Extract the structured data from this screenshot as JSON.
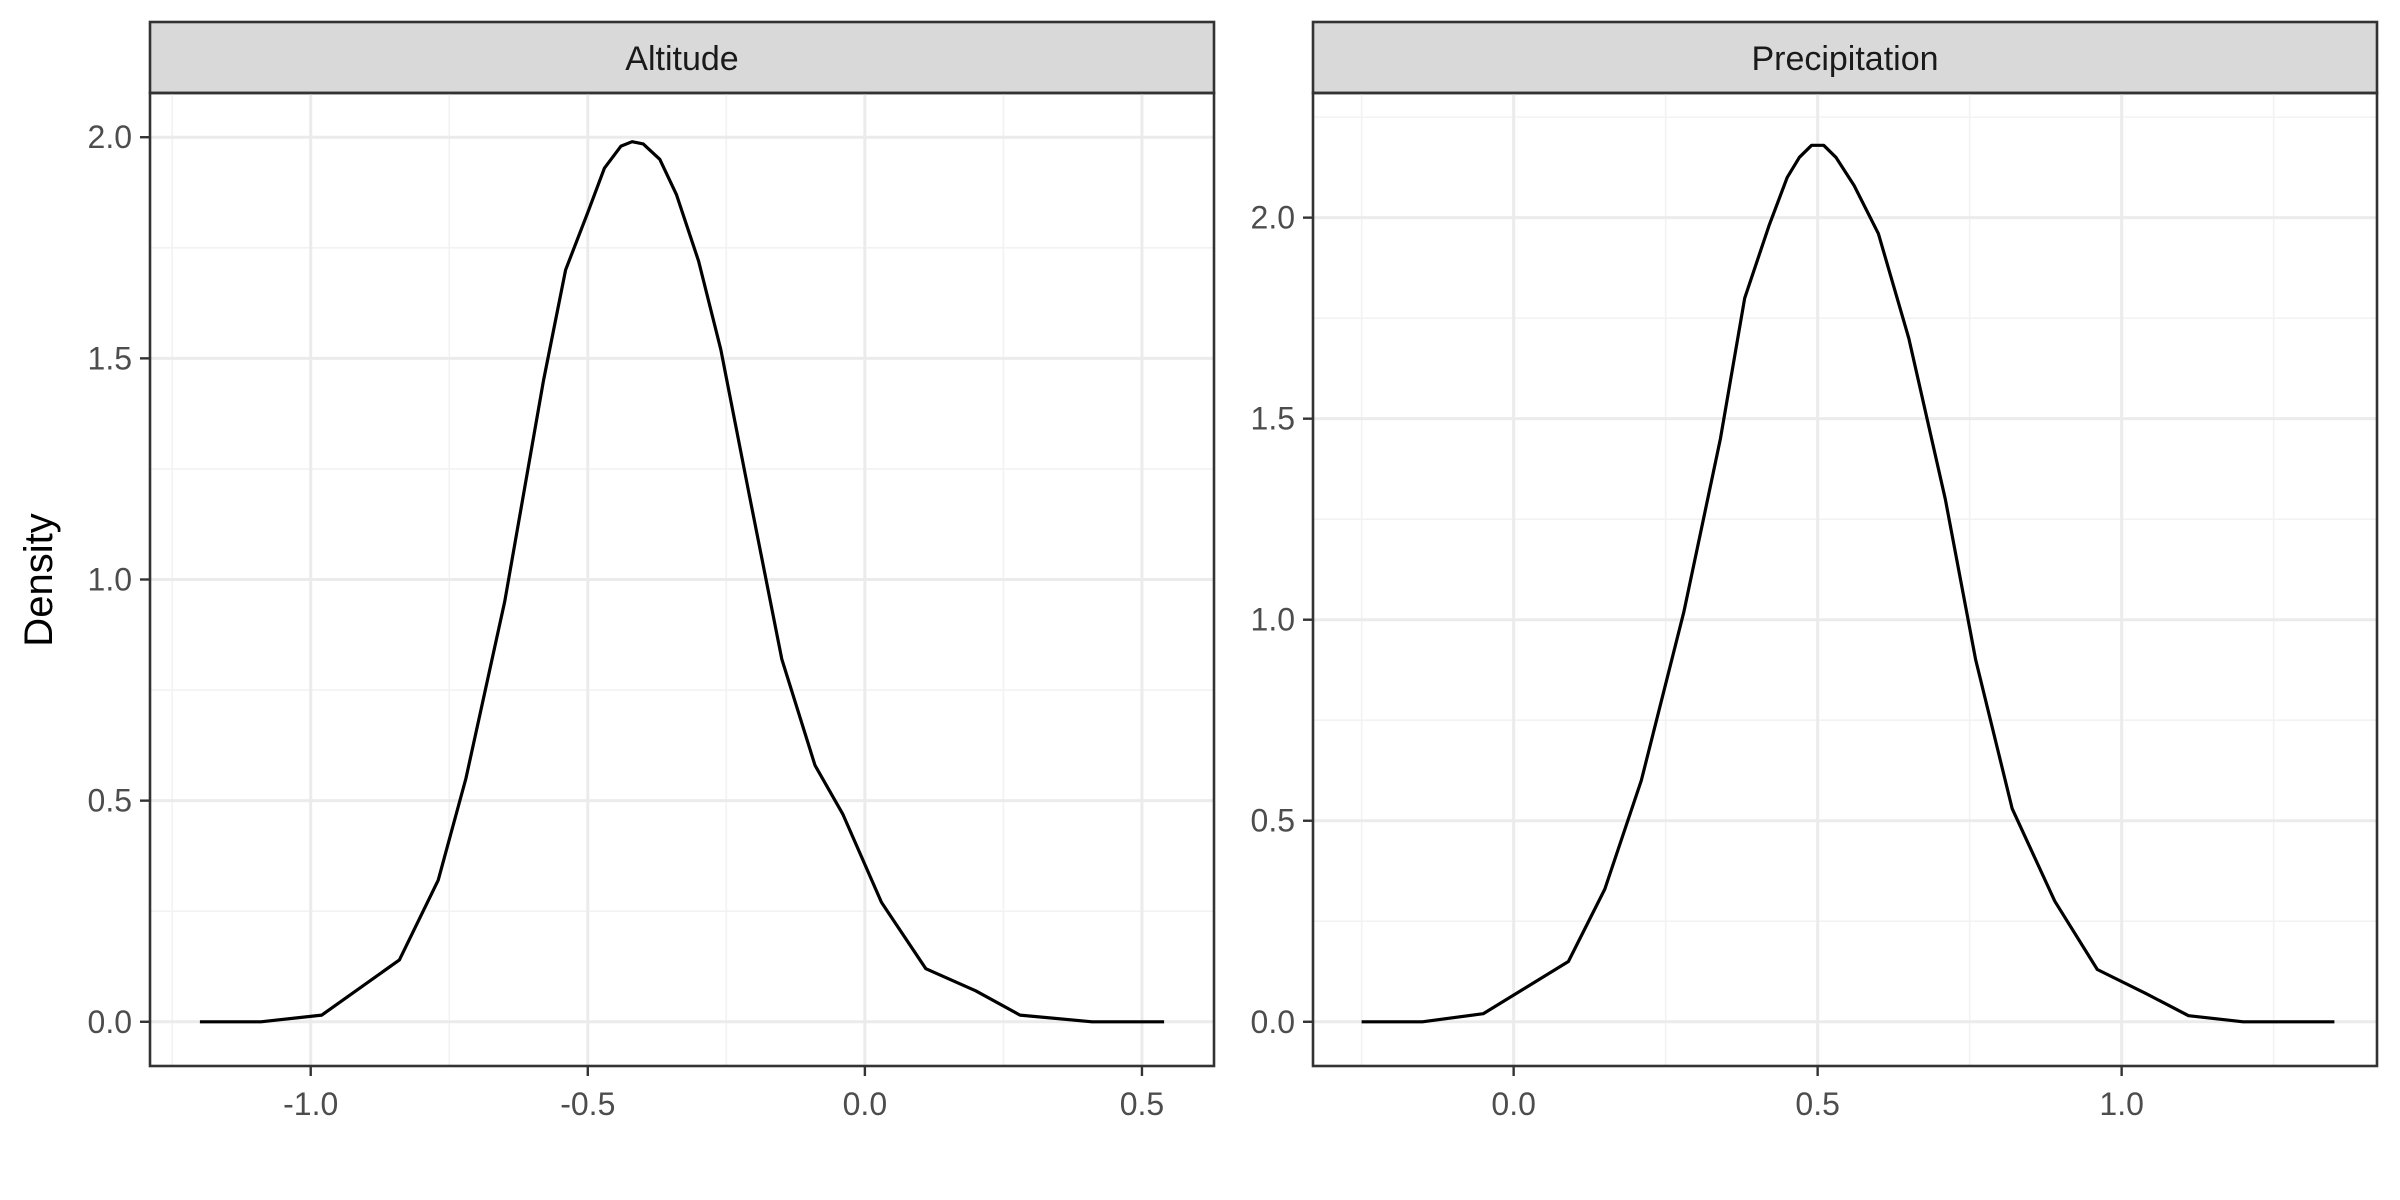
{
  "chart_data": {
    "type": "line",
    "ylabel": "Density",
    "xlabel": "",
    "panels": [
      {
        "strip_label": "Altitude",
        "xlim": [
          -1.29,
          0.63
        ],
        "ylim": [
          -0.1,
          2.1
        ],
        "x_breaks": [
          -1.0,
          -0.5,
          0.0,
          0.5
        ],
        "x_break_labels": [
          "-1.0",
          "-0.5",
          "0.0",
          "0.5"
        ],
        "y_breaks": [
          0.0,
          0.5,
          1.0,
          1.5,
          2.0
        ],
        "y_break_labels": [
          "0.0",
          "0.5",
          "1.0",
          "1.5",
          "2.0"
        ],
        "series": [
          {
            "x": [
              -1.2,
              -1.09,
              -0.98,
              -0.84,
              -0.77,
              -0.72,
              -0.65,
              -0.58,
              -0.54,
              -0.5,
              -0.47,
              -0.44,
              -0.42,
              -0.4,
              -0.37,
              -0.34,
              -0.3,
              -0.26,
              -0.21,
              -0.15,
              -0.09,
              -0.04,
              0.03,
              0.11,
              0.2,
              0.28,
              0.41,
              0.54
            ],
            "y": [
              0.0,
              0.0,
              0.015,
              0.14,
              0.32,
              0.55,
              0.95,
              1.45,
              1.7,
              1.83,
              1.93,
              1.98,
              1.99,
              1.985,
              1.95,
              1.87,
              1.72,
              1.52,
              1.2,
              0.82,
              0.58,
              0.47,
              0.27,
              0.12,
              0.07,
              0.015,
              0.0,
              0.0
            ]
          }
        ]
      },
      {
        "strip_label": "Precipitation",
        "xlim": [
          -0.33,
          1.42
        ],
        "ylim": [
          -0.11,
          2.31
        ],
        "x_breaks": [
          0.0,
          0.5,
          1.0
        ],
        "x_break_labels": [
          "0.0",
          "0.5",
          "1.0"
        ],
        "y_breaks": [
          0.0,
          0.5,
          1.0,
          1.5,
          2.0
        ],
        "y_break_labels": [
          "0.0",
          "0.5",
          "1.0",
          "1.5",
          "2.0"
        ],
        "series": [
          {
            "x": [
              -0.25,
              -0.15,
              -0.05,
              0.09,
              0.15,
              0.21,
              0.28,
              0.34,
              0.38,
              0.42,
              0.45,
              0.47,
              0.49,
              0.51,
              0.53,
              0.56,
              0.6,
              0.65,
              0.71,
              0.76,
              0.82,
              0.89,
              0.96,
              1.04,
              1.11,
              1.2,
              1.26,
              1.35
            ],
            "y": [
              0.0,
              0.0,
              0.02,
              0.15,
              0.33,
              0.6,
              1.02,
              1.45,
              1.8,
              1.98,
              2.1,
              2.15,
              2.18,
              2.18,
              2.15,
              2.08,
              1.96,
              1.7,
              1.3,
              0.9,
              0.53,
              0.3,
              0.13,
              0.07,
              0.015,
              0.0,
              0.0,
              0.0
            ]
          }
        ]
      }
    ]
  }
}
